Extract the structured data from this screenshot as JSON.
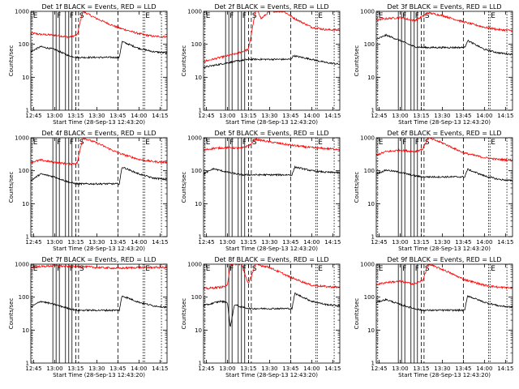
{
  "colors": {
    "events": "#000000",
    "lld": "#ff0000",
    "background": "#ffffff"
  },
  "chart_data": [
    {
      "type": "line",
      "title": "Det 1f BLACK = Events, RED = LLD",
      "xlabel": "Start Time (28-Sep-13 12:43:20)",
      "ylabel": "Counts/sec",
      "y_scale": "log",
      "ylim": [
        1,
        1000
      ],
      "x_ticks": [
        "12:45",
        "13:00",
        "13:15",
        "13:30",
        "13:45",
        "14:00",
        "14:15"
      ],
      "y_ticks": [
        "1",
        "10",
        "100",
        "1000"
      ],
      "markers": [
        {
          "label": "E",
          "time": "12:44"
        },
        {
          "label": "F",
          "time": "13:01"
        },
        {
          "label": "F",
          "time": "13:10"
        },
        {
          "label": "S",
          "time": "13:17"
        },
        {
          "label": "E",
          "time": "14:04"
        }
      ],
      "series": [
        {
          "color": "#ff0000",
          "x": [
            "12:43",
            "12:50",
            "13:00",
            "13:10",
            "13:16",
            "13:20",
            "13:30",
            "13:45",
            "14:00",
            "14:10",
            "14:19"
          ],
          "y": [
            220,
            200,
            190,
            165,
            190,
            1000,
            600,
            320,
            210,
            175,
            170
          ]
        },
        {
          "color": "#000000",
          "x": [
            "12:43",
            "12:50",
            "13:00",
            "13:10",
            "13:16",
            "13:46",
            "13:48",
            "14:00",
            "14:10",
            "14:19"
          ],
          "y": [
            60,
            85,
            70,
            45,
            40,
            40,
            120,
            75,
            60,
            55
          ]
        }
      ]
    },
    {
      "type": "line",
      "title": "Det 2f BLACK = Events, RED = LLD",
      "xlabel": "Start Time (28-Sep-13 12:43:20)",
      "ylabel": "Counts/sec",
      "y_scale": "log",
      "ylim": [
        1,
        1000
      ],
      "x_ticks": [
        "12:45",
        "13:00",
        "13:15",
        "13:30",
        "13:45",
        "14:00",
        "14:15"
      ],
      "y_ticks": [
        "1",
        "10",
        "100",
        "1000"
      ],
      "markers": [
        {
          "label": "E",
          "time": "12:44"
        },
        {
          "label": "F",
          "time": "13:01"
        },
        {
          "label": "F",
          "time": "13:10"
        },
        {
          "label": "S",
          "time": "13:17"
        },
        {
          "label": "E",
          "time": "14:04"
        }
      ],
      "series": [
        {
          "color": "#ff0000",
          "x": [
            "12:43",
            "12:55",
            "13:05",
            "13:15",
            "13:18",
            "13:20",
            "13:22",
            "13:24",
            "13:30",
            "13:40",
            "13:48",
            "14:00",
            "14:10",
            "14:19"
          ],
          "y": [
            30,
            40,
            50,
            70,
            350,
            1000,
            1000,
            600,
            1000,
            1000,
            600,
            330,
            280,
            270
          ]
        },
        {
          "color": "#000000",
          "x": [
            "12:43",
            "12:55",
            "13:05",
            "13:15",
            "13:45",
            "13:47",
            "14:00",
            "14:10",
            "14:19"
          ],
          "y": [
            20,
            25,
            30,
            35,
            35,
            45,
            35,
            28,
            25
          ]
        }
      ]
    },
    {
      "type": "line",
      "title": "Det 3f BLACK = Events, RED = LLD",
      "xlabel": "Start Time (28-Sep-13 12:43:20)",
      "ylabel": "Counts/sec",
      "y_scale": "log",
      "ylim": [
        1,
        1000
      ],
      "x_ticks": [
        "12:45",
        "13:00",
        "13:15",
        "13:30",
        "13:45",
        "14:00",
        "14:15"
      ],
      "y_ticks": [
        "1",
        "10",
        "100",
        "1000"
      ],
      "markers": [
        {
          "label": "E",
          "time": "12:44"
        },
        {
          "label": "F",
          "time": "13:01"
        },
        {
          "label": "F",
          "time": "13:10"
        },
        {
          "label": "S",
          "time": "13:17"
        },
        {
          "label": "E",
          "time": "14:04"
        }
      ],
      "series": [
        {
          "color": "#ff0000",
          "x": [
            "12:43",
            "12:50",
            "13:00",
            "13:10",
            "13:16",
            "13:20",
            "13:30",
            "13:45",
            "14:00",
            "14:10",
            "14:19"
          ],
          "y": [
            550,
            600,
            650,
            520,
            700,
            900,
            750,
            480,
            330,
            280,
            260
          ]
        },
        {
          "color": "#000000",
          "x": [
            "12:43",
            "12:50",
            "13:00",
            "13:10",
            "13:16",
            "13:46",
            "13:48",
            "14:00",
            "14:10",
            "14:19"
          ],
          "y": [
            140,
            190,
            130,
            85,
            80,
            80,
            130,
            70,
            55,
            50
          ]
        }
      ]
    },
    {
      "type": "line",
      "title": "Det 4f BLACK = Events, RED = LLD",
      "xlabel": "Start Time (28-Sep-13 12:43:20)",
      "ylabel": "Counts/sec",
      "y_scale": "log",
      "ylim": [
        1,
        1000
      ],
      "x_ticks": [
        "12:45",
        "13:00",
        "13:15",
        "13:30",
        "13:45",
        "14:00",
        "14:15"
      ],
      "y_ticks": [
        "1",
        "10",
        "100",
        "1000"
      ],
      "markers": [
        {
          "label": "E",
          "time": "12:44"
        },
        {
          "label": "F",
          "time": "13:01"
        },
        {
          "label": "F",
          "time": "13:10"
        },
        {
          "label": "S",
          "time": "13:17"
        },
        {
          "label": "E",
          "time": "14:04"
        }
      ],
      "series": [
        {
          "color": "#ff0000",
          "x": [
            "12:43",
            "12:50",
            "13:00",
            "13:10",
            "13:16",
            "13:20",
            "13:30",
            "13:45",
            "14:00",
            "14:10",
            "14:19"
          ],
          "y": [
            180,
            210,
            180,
            160,
            170,
            1000,
            700,
            350,
            220,
            190,
            180
          ]
        },
        {
          "color": "#000000",
          "x": [
            "12:43",
            "12:50",
            "13:00",
            "13:10",
            "13:16",
            "13:46",
            "13:48",
            "14:00",
            "14:10",
            "14:19"
          ],
          "y": [
            50,
            80,
            65,
            45,
            40,
            40,
            130,
            80,
            60,
            55
          ]
        }
      ]
    },
    {
      "type": "line",
      "title": "Det 5f BLACK = Events, RED = LLD",
      "xlabel": "Start Time (28-Sep-13 12:43:20)",
      "ylabel": "Counts/sec",
      "y_scale": "log",
      "ylim": [
        1,
        1000
      ],
      "x_ticks": [
        "12:45",
        "13:00",
        "13:15",
        "13:30",
        "13:45",
        "14:00",
        "14:15"
      ],
      "y_ticks": [
        "1",
        "10",
        "100",
        "1000"
      ],
      "markers": [
        {
          "label": "E",
          "time": "12:44"
        },
        {
          "label": "F",
          "time": "13:01"
        },
        {
          "label": "F",
          "time": "13:10"
        },
        {
          "label": "S",
          "time": "13:17"
        },
        {
          "label": "E",
          "time": "14:04"
        }
      ],
      "series": [
        {
          "color": "#ff0000",
          "x": [
            "12:43",
            "12:50",
            "13:00",
            "13:10",
            "13:16",
            "13:20",
            "13:30",
            "13:45",
            "14:00",
            "14:10",
            "14:19"
          ],
          "y": [
            420,
            480,
            500,
            480,
            600,
            900,
            750,
            600,
            500,
            470,
            450
          ]
        },
        {
          "color": "#000000",
          "x": [
            "12:43",
            "12:50",
            "13:00",
            "13:10",
            "13:16",
            "13:46",
            "13:48",
            "14:00",
            "14:10",
            "14:19"
          ],
          "y": [
            80,
            115,
            90,
            75,
            75,
            75,
            130,
            100,
            90,
            88
          ]
        }
      ]
    },
    {
      "type": "line",
      "title": "Det 6f BLACK = Events, RED = LLD",
      "xlabel": "Start Time (28-Sep-13 12:43:20)",
      "ylabel": "Counts/sec",
      "y_scale": "log",
      "ylim": [
        1,
        1000
      ],
      "x_ticks": [
        "12:45",
        "13:00",
        "13:15",
        "13:30",
        "13:45",
        "14:00",
        "14:15"
      ],
      "y_ticks": [
        "1",
        "10",
        "100",
        "1000"
      ],
      "markers": [
        {
          "label": "E",
          "time": "12:44"
        },
        {
          "label": "F",
          "time": "13:01"
        },
        {
          "label": "F",
          "time": "13:10"
        },
        {
          "label": "S",
          "time": "13:17"
        },
        {
          "label": "E",
          "time": "14:04"
        }
      ],
      "series": [
        {
          "color": "#ff0000",
          "x": [
            "12:43",
            "12:50",
            "13:00",
            "13:10",
            "13:16",
            "13:20",
            "13:30",
            "13:45",
            "14:00",
            "14:10",
            "14:19"
          ],
          "y": [
            300,
            380,
            420,
            380,
            450,
            1000,
            700,
            350,
            250,
            220,
            210
          ]
        },
        {
          "color": "#000000",
          "x": [
            "12:43",
            "12:50",
            "13:00",
            "13:10",
            "13:16",
            "13:46",
            "13:48",
            "14:00",
            "14:10",
            "14:19"
          ],
          "y": [
            80,
            105,
            90,
            70,
            65,
            65,
            110,
            70,
            55,
            50
          ]
        }
      ]
    },
    {
      "type": "line",
      "title": "Det 7f BLACK = Events, RED = LLD",
      "xlabel": "Start Time (28-Sep-13 12:43:20)",
      "ylabel": "Counts/sec",
      "y_scale": "log",
      "ylim": [
        1,
        1000
      ],
      "x_ticks": [
        "12:45",
        "13:00",
        "13:15",
        "13:30",
        "13:45",
        "14:00",
        "14:15"
      ],
      "y_ticks": [
        "1",
        "10",
        "100",
        "1000"
      ],
      "markers": [
        {
          "label": "E",
          "time": "12:44"
        },
        {
          "label": "F",
          "time": "13:01"
        },
        {
          "label": "F",
          "time": "13:10"
        },
        {
          "label": "S",
          "time": "13:17"
        },
        {
          "label": "E",
          "time": "14:04"
        }
      ],
      "series": [
        {
          "color": "#ff0000",
          "x": [
            "12:43",
            "12:50",
            "13:00",
            "13:10",
            "13:16",
            "13:30",
            "13:45",
            "14:00",
            "14:10",
            "14:19"
          ],
          "y": [
            800,
            850,
            900,
            850,
            850,
            800,
            750,
            800,
            800,
            800
          ]
        },
        {
          "color": "#000000",
          "x": [
            "12:43",
            "12:50",
            "13:00",
            "13:10",
            "13:16",
            "13:46",
            "13:48",
            "14:00",
            "14:10",
            "14:19"
          ],
          "y": [
            50,
            75,
            60,
            45,
            40,
            40,
            110,
            70,
            55,
            50
          ]
        }
      ]
    },
    {
      "type": "line",
      "title": "Det 8f BLACK = Events, RED = LLD",
      "xlabel": "Start Time (28-Sep-13 12:43:20)",
      "ylabel": "Counts/sec",
      "y_scale": "log",
      "ylim": [
        1,
        1000
      ],
      "x_ticks": [
        "12:45",
        "13:00",
        "13:15",
        "13:30",
        "13:45",
        "14:00",
        "14:15"
      ],
      "y_ticks": [
        "1",
        "10",
        "100",
        "1000"
      ],
      "markers": [
        {
          "label": "E",
          "time": "12:44"
        },
        {
          "label": "F",
          "time": "13:01"
        },
        {
          "label": "F",
          "time": "13:10"
        },
        {
          "label": "S",
          "time": "13:17"
        },
        {
          "label": "E",
          "time": "14:04"
        }
      ],
      "series": [
        {
          "color": "#ff0000",
          "x": [
            "12:43",
            "12:55",
            "13:00",
            "13:02",
            "13:05",
            "13:10",
            "13:15",
            "13:20",
            "13:30",
            "13:45",
            "14:00",
            "14:10",
            "14:19"
          ],
          "y": [
            180,
            200,
            220,
            1000,
            1000,
            1000,
            250,
            1000,
            800,
            400,
            230,
            210,
            200
          ]
        },
        {
          "color": "#000000",
          "x": [
            "12:43",
            "12:55",
            "13:00",
            "13:02",
            "13:05",
            "13:10",
            "13:16",
            "13:46",
            "13:48",
            "14:00",
            "14:10",
            "14:19"
          ],
          "y": [
            55,
            75,
            70,
            12,
            60,
            50,
            45,
            45,
            130,
            75,
            60,
            55
          ]
        }
      ]
    },
    {
      "type": "line",
      "title": "Det 9f BLACK = Events, RED = LLD",
      "xlabel": "Start Time (28-Sep-13 12:43:20)",
      "ylabel": "Counts/sec",
      "y_scale": "log",
      "ylim": [
        1,
        1000
      ],
      "x_ticks": [
        "12:45",
        "13:00",
        "13:15",
        "13:30",
        "13:45",
        "14:00",
        "14:15"
      ],
      "y_ticks": [
        "1",
        "10",
        "100",
        "1000"
      ],
      "markers": [
        {
          "label": "E",
          "time": "12:44"
        },
        {
          "label": "F",
          "time": "13:01"
        },
        {
          "label": "F",
          "time": "13:10"
        },
        {
          "label": "S",
          "time": "13:17"
        },
        {
          "label": "E",
          "time": "14:04"
        }
      ],
      "series": [
        {
          "color": "#ff0000",
          "x": [
            "12:43",
            "12:50",
            "13:00",
            "13:10",
            "13:16",
            "13:20",
            "13:30",
            "13:45",
            "14:00",
            "14:10",
            "14:19"
          ],
          "y": [
            240,
            280,
            300,
            250,
            320,
            1000,
            700,
            350,
            230,
            200,
            190
          ]
        },
        {
          "color": "#000000",
          "x": [
            "12:43",
            "12:50",
            "13:00",
            "13:10",
            "13:16",
            "13:46",
            "13:48",
            "14:00",
            "14:10",
            "14:19"
          ],
          "y": [
            70,
            85,
            60,
            45,
            40,
            40,
            110,
            70,
            55,
            50
          ]
        }
      ]
    }
  ]
}
